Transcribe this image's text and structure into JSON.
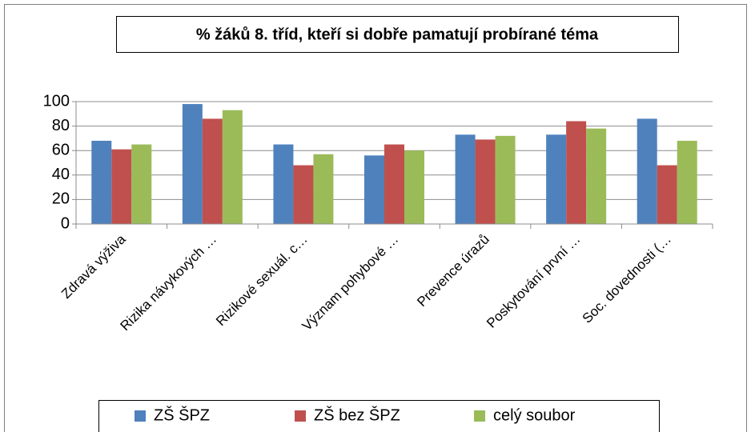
{
  "chart_data": {
    "type": "bar",
    "title": "% žáků 8. tříd, kteří si dobře pamatují probírané téma",
    "categories": [
      "Zdravá výživa",
      "Rizika návykových …",
      "Rizikové sexuál. c…",
      "Význam pohybové …",
      "Prevence úrazů",
      "Poskytování první …",
      "Soc. dovednosti (…"
    ],
    "series": [
      {
        "name": "ZŠ ŠPZ",
        "color": "#4f81bd",
        "values": [
          68,
          98,
          65,
          56,
          73,
          73,
          86
        ]
      },
      {
        "name": "ZŠ bez ŠPZ",
        "color": "#c0504d",
        "values": [
          61,
          86,
          48,
          65,
          69,
          84,
          48
        ]
      },
      {
        "name": "celý soubor",
        "color": "#9bbb59",
        "values": [
          65,
          93,
          57,
          60,
          72,
          78,
          68
        ]
      }
    ],
    "ylim": [
      0,
      100
    ],
    "yticks": [
      0,
      20,
      40,
      60,
      80,
      100
    ],
    "grid": true,
    "legend": "bottom"
  }
}
